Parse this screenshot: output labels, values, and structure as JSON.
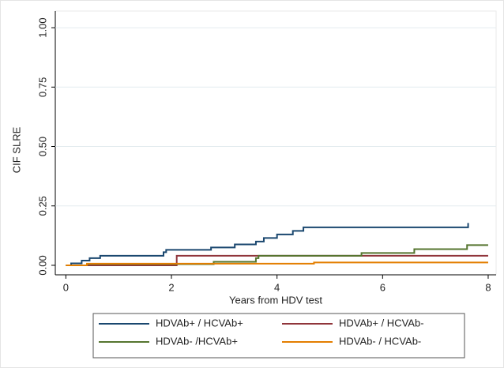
{
  "chart_data": {
    "type": "line",
    "step": "post",
    "xlabel": "Years from HDV test",
    "ylabel": "CIF SLRE",
    "xlim": [
      -0.2,
      8.15
    ],
    "ylim": [
      -0.04,
      1.07
    ],
    "xticks": [
      0,
      2,
      4,
      6,
      8
    ],
    "yticks": [
      {
        "value": 0,
        "label": "0.00"
      },
      0.25,
      {
        "value": 0.5,
        "label": "0.50"
      },
      0.75,
      {
        "value": 1,
        "label": "1.00"
      }
    ],
    "grid": true,
    "legend": "bottom",
    "series": [
      {
        "name": "HDVAb+ / HCVAb+",
        "color": "#1a476f",
        "x": [
          0,
          0.1,
          0.3,
          0.45,
          0.65,
          1.85,
          1.9,
          2.75,
          3.2,
          3.6,
          3.75,
          4.0,
          4.3,
          4.5,
          7.6,
          7.62
        ],
        "values": [
          0,
          0.008,
          0.02,
          0.03,
          0.04,
          0.055,
          0.065,
          0.075,
          0.088,
          0.1,
          0.115,
          0.13,
          0.145,
          0.16,
          0.16,
          0.178
        ]
      },
      {
        "name": "HDVAb+ / HCVAb-",
        "color": "#90353b",
        "x": [
          0,
          2.1,
          8.0
        ],
        "values": [
          0,
          0.04,
          0.04
        ]
      },
      {
        "name": "HDVAb- /HCVAb+",
        "color": "#55752f",
        "x": [
          0,
          0.4,
          2.8,
          3.6,
          3.65,
          5.6,
          6.6,
          7.6,
          8.0
        ],
        "values": [
          0,
          0.005,
          0.015,
          0.03,
          0.04,
          0.052,
          0.068,
          0.085,
          0.085
        ]
      },
      {
        "name": "HDVAb- / HCVAb-",
        "color": "#e37e00",
        "x": [
          0,
          0.4,
          4.7,
          8.0
        ],
        "values": [
          0,
          0.007,
          0.012,
          0.012
        ]
      }
    ]
  }
}
